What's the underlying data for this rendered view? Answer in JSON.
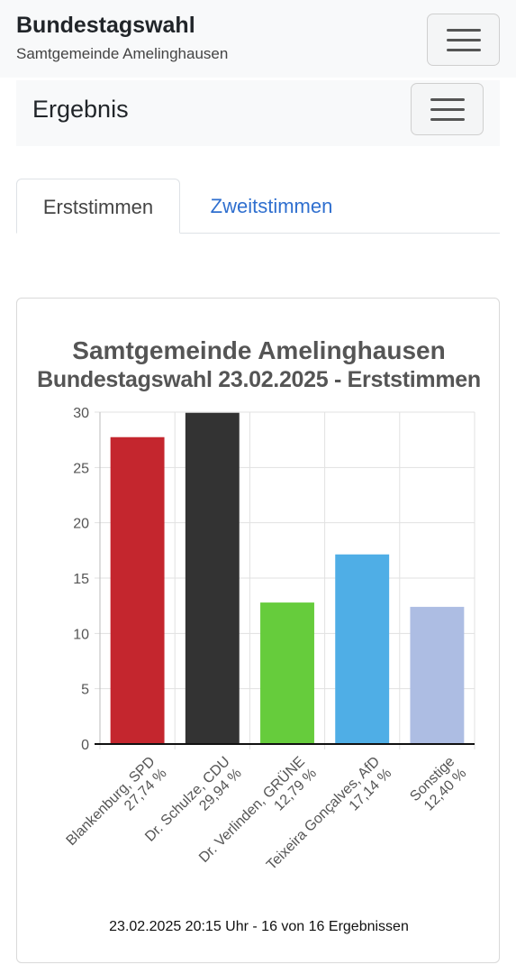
{
  "navbar": {
    "title": "Bundestagswahl",
    "subtitle": "Samtgemeinde Amelinghausen"
  },
  "subnav": {
    "title": "Ergebnis"
  },
  "tabs": [
    {
      "label": "Erststimmen",
      "active": true
    },
    {
      "label": "Zweitstimmen",
      "active": false
    }
  ],
  "chart_data": {
    "type": "bar",
    "title": "Samtgemeinde Amelinghausen",
    "subtitle": "Bundestagswahl 23.02.2025  - Erststimmen",
    "categories": [
      "Blankenburg, SPD",
      "Dr. Schulze, CDU",
      "Dr. Verlinden, GRÜNE",
      "Teixeira Gonçalves, AfD",
      "Sonstige"
    ],
    "percent_labels": [
      "27,74 %",
      "29,94 %",
      "12,79 %",
      "17,14 %",
      "12,40 %"
    ],
    "values": [
      27.74,
      29.94,
      12.79,
      17.14,
      12.4
    ],
    "colors": [
      "#c4262e",
      "#333333",
      "#66cc3c",
      "#4faee6",
      "#adbde3"
    ],
    "ylim": [
      0,
      30
    ],
    "yticks": [
      0,
      5,
      10,
      15,
      20,
      25,
      30
    ],
    "grid": true,
    "legend": "none"
  },
  "footer": {
    "note": "23.02.2025 20:15 Uhr - 16 von 16 Ergebnissen"
  }
}
